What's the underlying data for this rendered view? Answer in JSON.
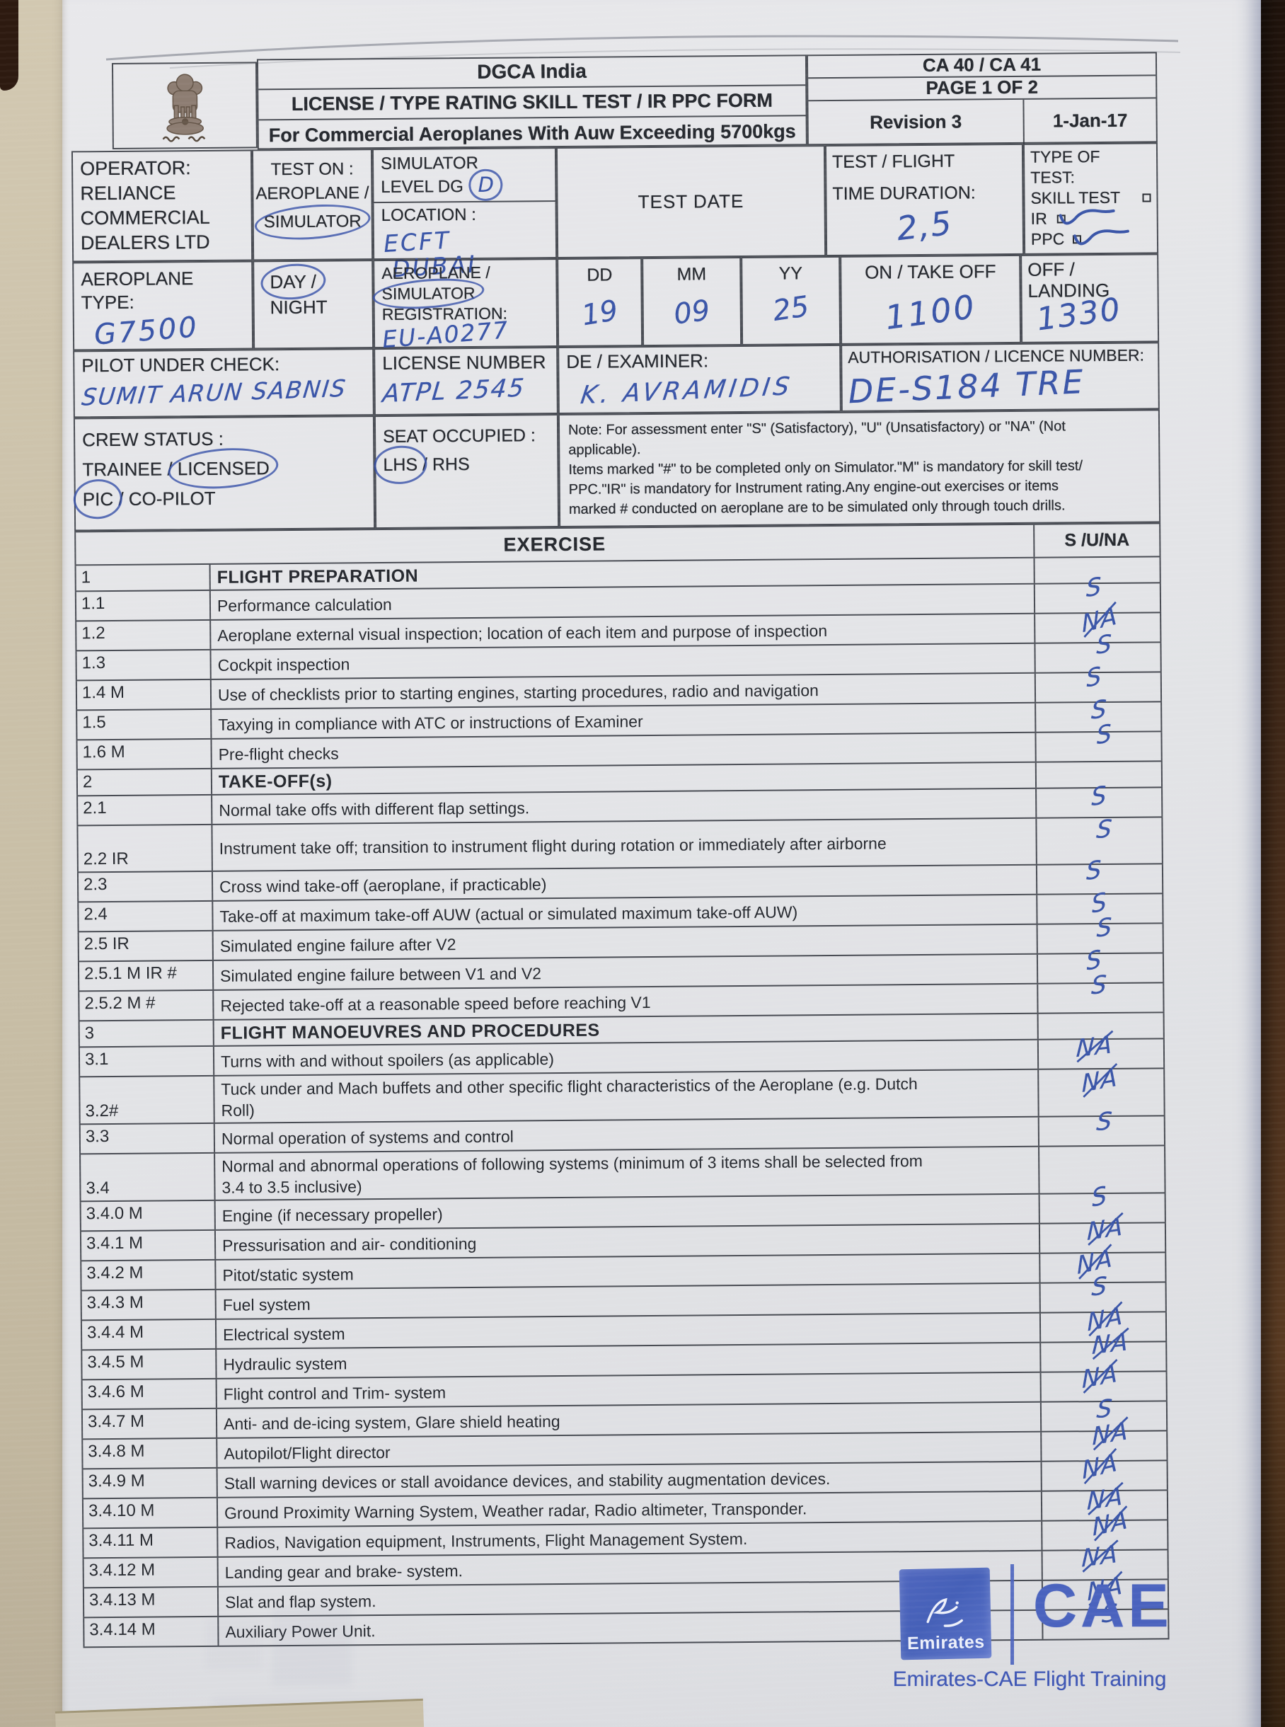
{
  "form": {
    "header": {
      "agency": "DGCA India",
      "title": "LICENSE / TYPE RATING SKILL TEST / IR PPC FORM",
      "subtitle": "For Commercial Aeroplanes With Auw Exceeding 5700kgs",
      "code": "CA 40 / CA 41",
      "page": "PAGE 1 OF 2",
      "revision": "Revision 3",
      "date": "1-Jan-17",
      "emblem": "ashoka-lion-capital-icon",
      "emblem_motto": "सत्यमेव जयते"
    },
    "info": {
      "operator_label": "OPERATOR:",
      "operator_lines": [
        "RELIANCE",
        "COMMERCIAL",
        "DEALERS LTD"
      ],
      "test_on_label": "TEST ON :",
      "test_on_option_a": "AEROPLANE /",
      "test_on_option_b": "SIMULATOR",
      "sim_level_label_1": "SIMULATOR",
      "sim_level_label_2": "LEVEL DG",
      "sim_level_value": "D",
      "location_label": "LOCATION :",
      "location_line1": "ECFT",
      "location_line2": "DUBAI",
      "test_date_label": "TEST DATE",
      "duration_label_1": "TEST / FLIGHT",
      "duration_label_2": "TIME DURATION:",
      "duration_value": "2,5",
      "type_label_1": "TYPE OF",
      "type_label_2": "TEST:",
      "type_options": [
        {
          "label": "SKILL TEST",
          "checked": false
        },
        {
          "label": "IR",
          "checked": true
        },
        {
          "label": "PPC",
          "checked": true
        }
      ],
      "aeroplane_type_label_1": "AEROPLANE",
      "aeroplane_type_label_2": "TYPE:",
      "aeroplane_type_value": "G7500",
      "day_option": "DAY /",
      "night_option": "NIGHT",
      "reg_label_1": "AEROPLANE /",
      "reg_label_2": "SIMULATOR",
      "reg_label_3": "REGISTRATION:",
      "reg_value": "EU-A0277",
      "dd_label": "DD",
      "mm_label": "MM",
      "yy_label": "YY",
      "dd_value": "19",
      "mm_value": "09",
      "yy_value": "25",
      "on_label": "ON / TAKE OFF",
      "on_value": "1100",
      "off_label_1": "OFF /",
      "off_label_2": "LANDING",
      "off_value": "1330",
      "pilot_label": "PILOT UNDER CHECK:",
      "pilot_value": "SUMIT ARUN SABNIS",
      "license_label": "LICENSE NUMBER",
      "license_value": "ATPL 2545",
      "examiner_label": "DE / EXAMINER:",
      "examiner_value": "K. AVRAMIDIS",
      "auth_label": "AUTHORISATION / LICENCE NUMBER:",
      "auth_value": "DE-S184 TRE",
      "crew_label": "CREW STATUS :",
      "crew_line2_a": "TRAINEE /",
      "crew_line2_b": "LICENSED",
      "crew_line3_a": "PIC",
      "crew_line3_b": "/ CO-PILOT",
      "seat_label": "SEAT OCCUPIED :",
      "seat_a": "LHS",
      "seat_b": "/ RHS",
      "note_lines": [
        "Note: For assessment enter \"S\" (Satisfactory), \"U\" (Unsatisfactory) or \"NA\" (Not",
        "applicable).",
        "Items marked \"#\" to be completed only on Simulator.\"M\" is mandatory for skill test/",
        "PPC.\"IR\" is mandatory for Instrument rating.Any engine-out exercises or items",
        "marked # conducted on aeroplane are to be simulated only through touch drills."
      ]
    },
    "exercise_table": {
      "exercise_header": "EXERCISE",
      "result_header": "S /U/NA",
      "rows": [
        {
          "id": "1",
          "text": "FLIGHT PREPARATION",
          "section": true,
          "mark": ""
        },
        {
          "id": "1.1",
          "text": "Performance calculation",
          "mark": "S"
        },
        {
          "id": "1.2",
          "text": "Aeroplane external visual inspection; location of each item and purpose of inspection",
          "mark": "NA"
        },
        {
          "id": "1.3",
          "text": "Cockpit inspection",
          "mark": "S"
        },
        {
          "id": "1.4 M",
          "text": "Use of checklists prior to starting engines, starting procedures, radio and navigation",
          "mark": "S"
        },
        {
          "id": "1.5",
          "text": "Taxying in compliance with ATC or instructions of Examiner",
          "mark": "S"
        },
        {
          "id": "1.6 M",
          "text": "Pre-flight checks",
          "mark": "S"
        },
        {
          "id": "2",
          "text": "TAKE-OFF(s)",
          "section": true,
          "mark": ""
        },
        {
          "id": "2.1",
          "text": "Normal take offs with different flap settings.",
          "mark": "S"
        },
        {
          "id": "2.2 IR",
          "text": "Instrument take off; transition to instrument flight during rotation or immediately after airborne",
          "tall": true,
          "mark": "S"
        },
        {
          "id": "2.3",
          "text": "Cross wind take-off (aeroplane, if practicable)",
          "mark": "S"
        },
        {
          "id": "2.4",
          "text": "Take-off at maximum take-off AUW (actual or simulated maximum take-off AUW)",
          "mark": "S"
        },
        {
          "id": "2.5 IR",
          "text": "Simulated engine failure after V2",
          "mark": "S"
        },
        {
          "id": "2.5.1 M IR #",
          "text": "Simulated engine failure between V1 and V2",
          "mark": "S"
        },
        {
          "id": "2.5.2 M #",
          "text": "Rejected take-off at a reasonable speed before reaching V1",
          "mark": "S"
        },
        {
          "id": "3",
          "text": "FLIGHT MANOEUVRES AND PROCEDURES",
          "section": true,
          "mark": ""
        },
        {
          "id": "3.1",
          "text": "Turns with and without spoilers (as applicable)",
          "mark": "NA"
        },
        {
          "id": "3.2#",
          "text": "Tuck under and Mach buffets and other specific flight characteristics of the Aeroplane  (e.g. Dutch Roll)",
          "tall": true,
          "mark": "NA"
        },
        {
          "id": "3.3",
          "text": "Normal operation of systems and control",
          "mark": "S"
        },
        {
          "id": "3.4",
          "text": "Normal and abnormal operations of following systems (minimum of 3 items shall be selected from 3.4 to 3.5 inclusive)",
          "tall": true,
          "mark": ""
        },
        {
          "id": "3.4.0 M",
          "text": "Engine (if necessary propeller)",
          "mark": "S"
        },
        {
          "id": "3.4.1 M",
          "text": "Pressurisation and air- conditioning",
          "mark": "NA"
        },
        {
          "id": "3.4.2 M",
          "text": "Pitot/static system",
          "mark": "NA"
        },
        {
          "id": "3.4.3 M",
          "text": "Fuel system",
          "mark": "S"
        },
        {
          "id": "3.4.4 M",
          "text": "Electrical system",
          "mark": "NA"
        },
        {
          "id": "3.4.5 M",
          "text": "Hydraulic system",
          "mark": "NA"
        },
        {
          "id": "3.4.6 M",
          "text": "Flight control and Trim- system",
          "mark": "NA"
        },
        {
          "id": "3.4.7 M",
          "text": "Anti- and de-icing system, Glare shield heating",
          "mark": "S"
        },
        {
          "id": "3.4.8 M",
          "text": "Autopilot/Flight director",
          "mark": "NA"
        },
        {
          "id": "3.4.9 M",
          "text": "Stall warning devices or stall avoidance devices, and stability augmentation devices.",
          "mark": "NA"
        },
        {
          "id": "3.4.10 M",
          "text": "Ground Proximity Warning System, Weather radar, Radio altimeter, Transponder.",
          "mark": "NA"
        },
        {
          "id": "3.4.11 M",
          "text": "Radios, Navigation equipment, Instruments, Flight Management System.",
          "mark": "NA"
        },
        {
          "id": "3.4.12 M",
          "text": "Landing gear and brake- system.",
          "mark": "NA"
        },
        {
          "id": "3.4.13 M",
          "text": "Slat and flap system.",
          "mark": "NA"
        },
        {
          "id": "3.4.14 M",
          "text": "Auxiliary Power Unit.",
          "mark": "S"
        }
      ]
    },
    "footer": {
      "emirates_label": "Emirates",
      "cae_label": "CAE",
      "tagline": "Emirates-CAE Flight Training"
    }
  }
}
